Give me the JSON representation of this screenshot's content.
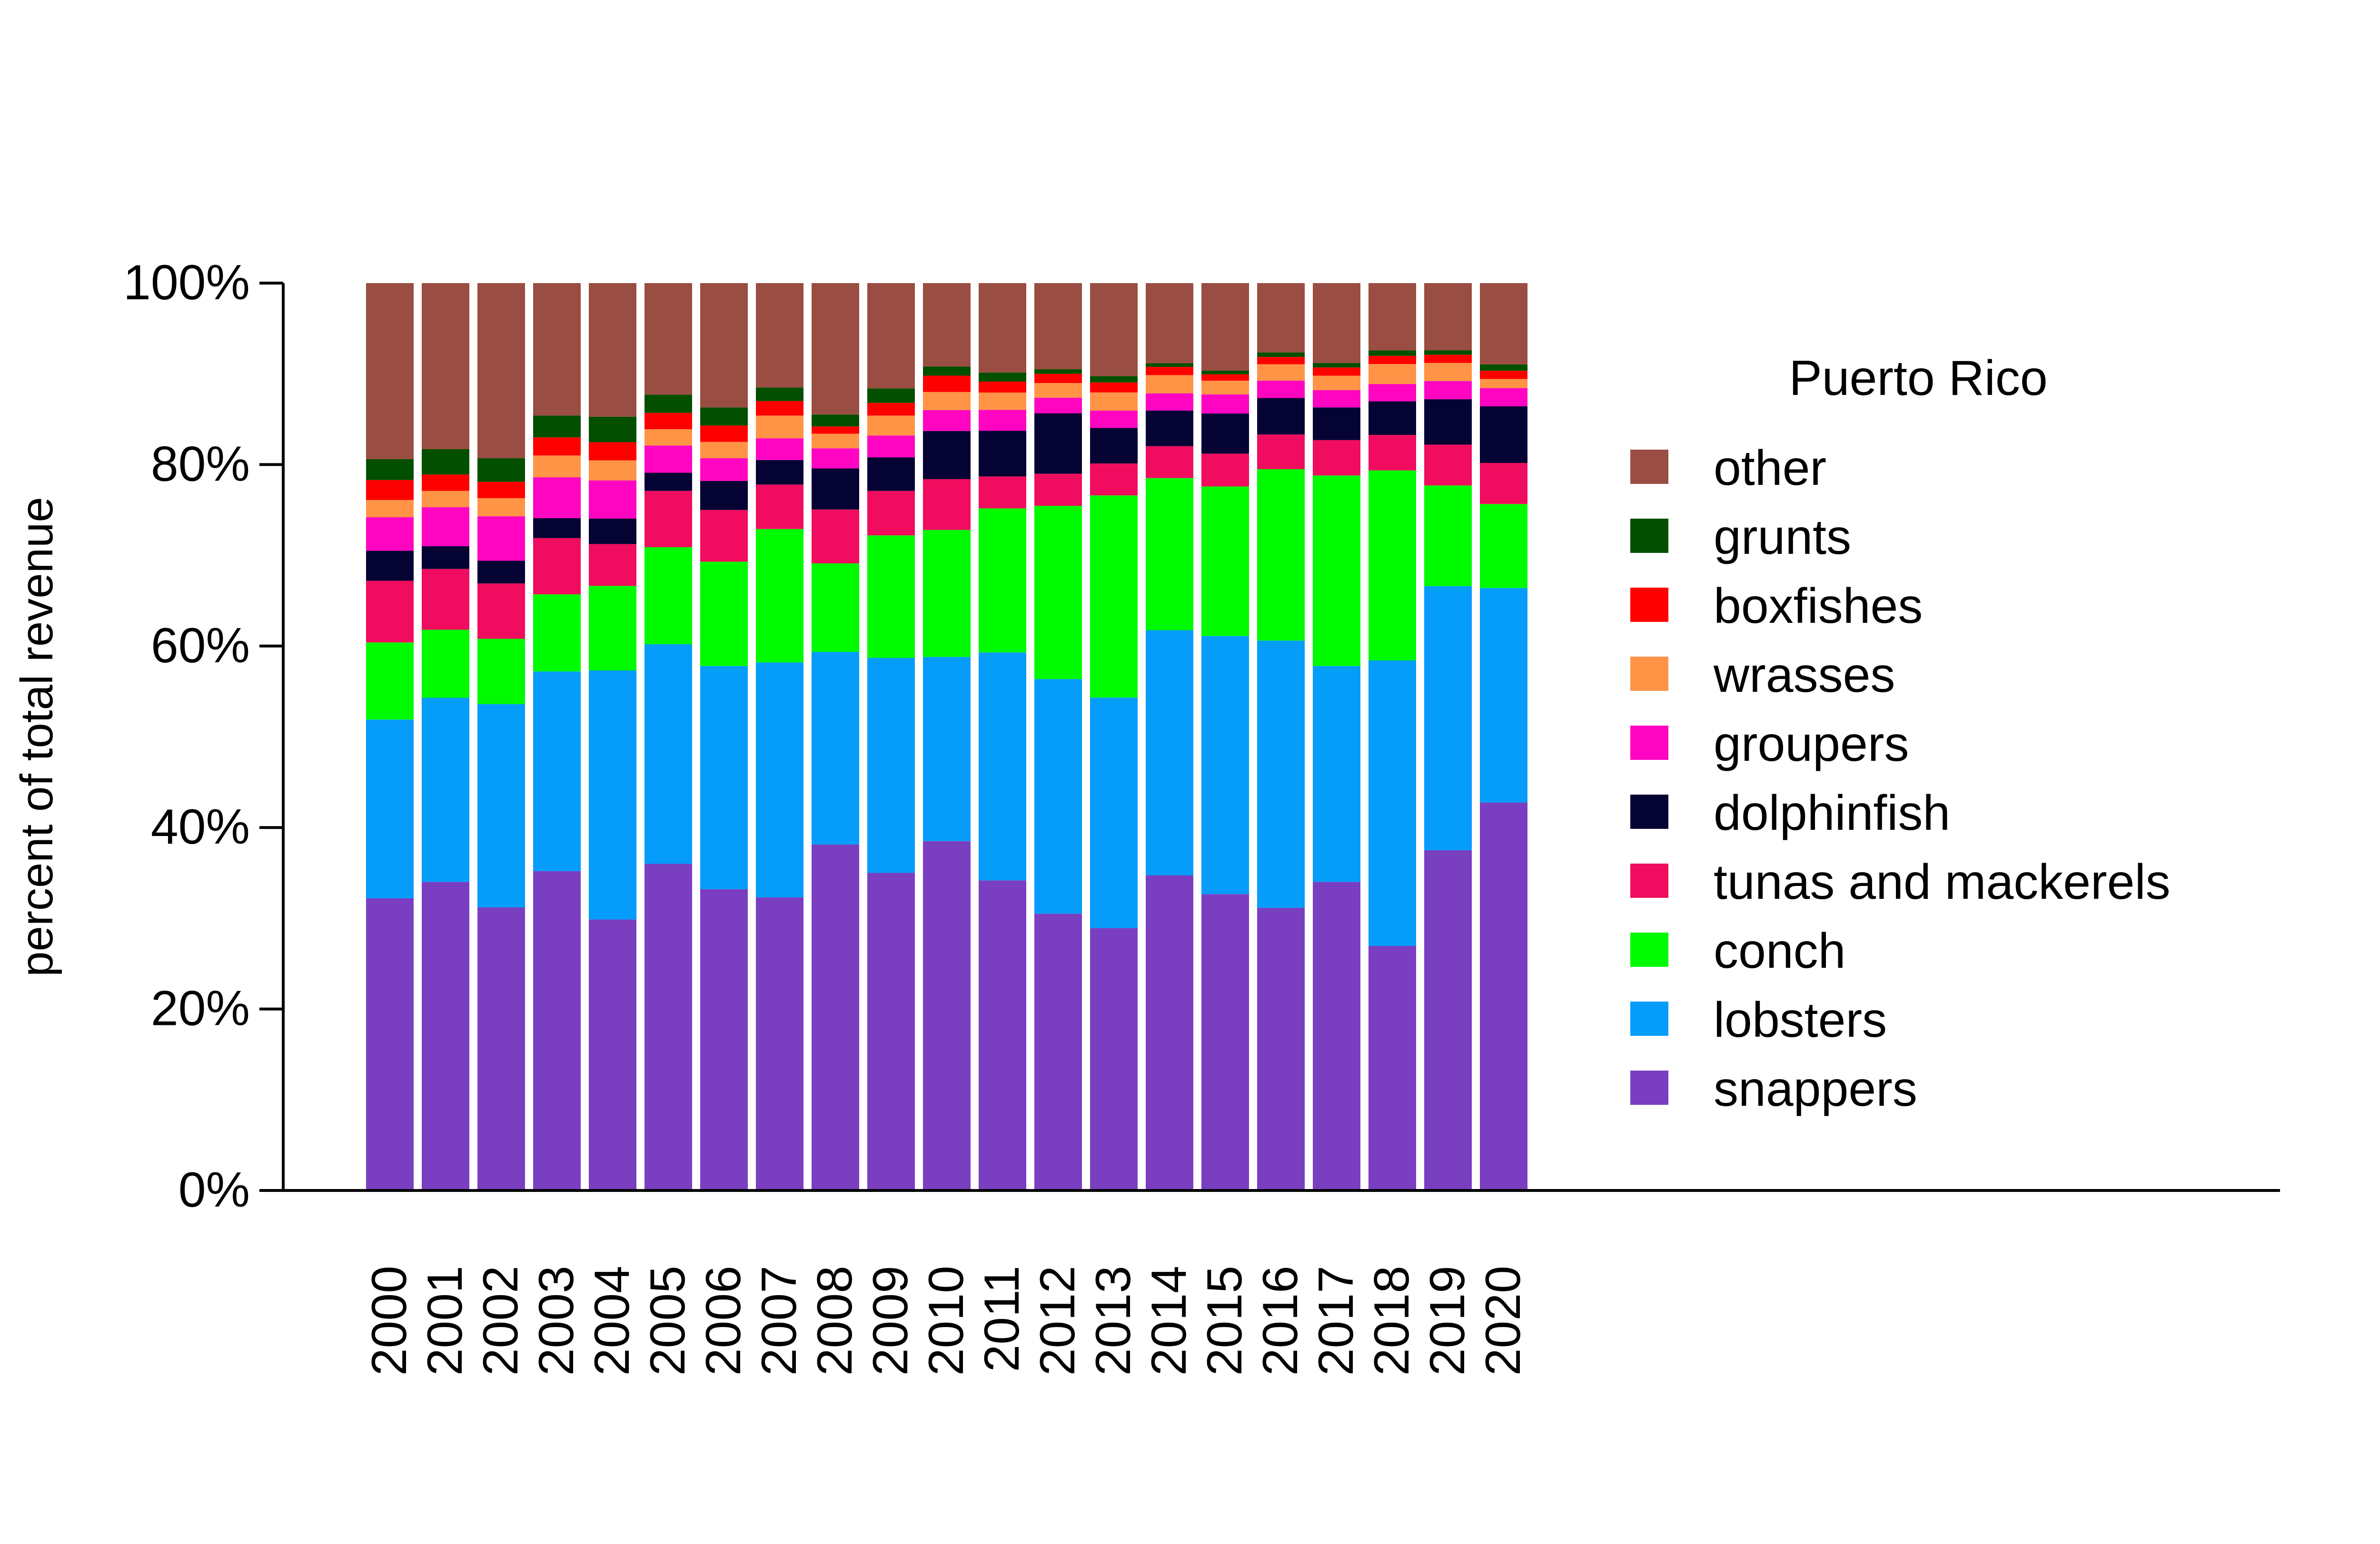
{
  "chart_data": {
    "type": "bar",
    "stacked": true,
    "percent_stacked": true,
    "title": "",
    "xlabel": "",
    "ylabel": "percent of total revenue",
    "ylim": [
      0,
      100
    ],
    "yticks": [
      "0%",
      "20%",
      "40%",
      "60%",
      "80%",
      "100%"
    ],
    "grid": false,
    "legend_title": "Puerto Rico",
    "legend_position": "right",
    "categories": [
      "2000",
      "2001",
      "2002",
      "2003",
      "2004",
      "2005",
      "2006",
      "2007",
      "2008",
      "2009",
      "2010",
      "2011",
      "2012",
      "2013",
      "2014",
      "2015",
      "2016",
      "2017",
      "2018",
      "2019",
      "2020"
    ],
    "series": [
      {
        "name": "snappers",
        "color": "#7A3FC0",
        "values": [
          32.2,
          34.0,
          31.2,
          35.2,
          29.8,
          36.0,
          33.2,
          32.3,
          37.9,
          35.0,
          38.5,
          34.0,
          30.2,
          28.8,
          34.6,
          32.5,
          31.0,
          34.0,
          26.9,
          37.5,
          42.5
        ]
      },
      {
        "name": "lobsters",
        "color": "#069CFA",
        "values": [
          19.7,
          20.3,
          22.4,
          22.0,
          27.4,
          24.2,
          24.6,
          25.9,
          21.1,
          23.7,
          20.3,
          25.0,
          25.6,
          25.3,
          26.9,
          28.3,
          29.3,
          23.8,
          31.4,
          29.1,
          23.5
        ]
      },
      {
        "name": "conch",
        "color": "#00FA00",
        "values": [
          8.5,
          7.5,
          7.2,
          8.5,
          9.3,
          10.7,
          11.5,
          14.7,
          9.7,
          13.5,
          14.0,
          15.8,
          18.9,
          22.2,
          16.7,
          16.4,
          18.8,
          21.0,
          20.9,
          11.1,
          9.2
        ]
      },
      {
        "name": "tunas and mackerels",
        "color": "#F00C5E",
        "values": [
          6.8,
          6.7,
          6.1,
          6.2,
          4.6,
          6.2,
          5.7,
          4.9,
          5.9,
          4.9,
          5.6,
          3.5,
          3.5,
          3.5,
          3.5,
          3.6,
          3.8,
          3.9,
          3.9,
          4.5,
          4.5
        ]
      },
      {
        "name": "dolphinfish",
        "color": "#050333",
        "values": [
          3.3,
          2.5,
          2.5,
          2.2,
          2.8,
          2.0,
          3.2,
          2.7,
          4.5,
          3.7,
          5.3,
          5.0,
          6.6,
          3.9,
          3.9,
          4.4,
          4.0,
          3.6,
          3.7,
          5.0,
          6.2
        ]
      },
      {
        "name": "groupers",
        "color": "#FF05C1",
        "values": [
          3.7,
          4.3,
          4.9,
          4.5,
          4.2,
          3.0,
          2.5,
          2.4,
          2.2,
          2.4,
          2.3,
          2.3,
          1.7,
          1.9,
          1.9,
          2.1,
          1.9,
          1.9,
          1.9,
          2.0,
          2.0
        ]
      },
      {
        "name": "wrasses",
        "color": "#FF9446",
        "values": [
          1.9,
          1.8,
          2.0,
          2.4,
          2.2,
          1.8,
          1.8,
          2.5,
          1.6,
          2.2,
          2.0,
          1.9,
          1.6,
          2.0,
          2.0,
          1.5,
          1.8,
          1.6,
          2.2,
          2.0,
          1.0
        ]
      },
      {
        "name": "boxfishes",
        "color": "#FF0000",
        "values": [
          2.2,
          1.8,
          1.8,
          2.0,
          2.0,
          1.8,
          1.8,
          1.6,
          0.8,
          1.4,
          1.8,
          1.2,
          1.0,
          1.1,
          0.9,
          0.7,
          0.8,
          0.9,
          0.9,
          0.9,
          0.9
        ]
      },
      {
        "name": "grunts",
        "color": "#034F00",
        "values": [
          2.3,
          2.8,
          2.6,
          2.4,
          2.8,
          2.0,
          2.0,
          1.5,
          1.3,
          1.6,
          1.0,
          1.0,
          0.5,
          0.7,
          0.4,
          0.4,
          0.5,
          0.5,
          0.6,
          0.5,
          0.7
        ]
      },
      {
        "name": "other",
        "color": "#9A4D42",
        "values": [
          19.4,
          18.3,
          19.3,
          14.6,
          14.7,
          12.3,
          13.7,
          11.5,
          14.4,
          11.6,
          9.2,
          9.8,
          9.4,
          10.2,
          8.8,
          9.6,
          7.6,
          8.8,
          7.4,
          7.4,
          8.9
        ]
      }
    ]
  }
}
